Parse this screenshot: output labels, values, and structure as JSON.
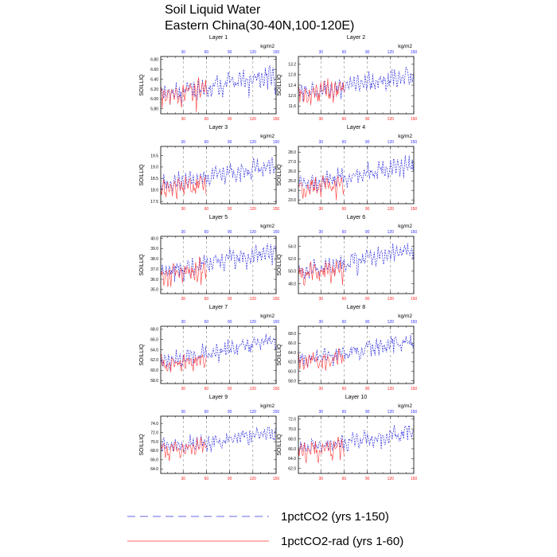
{
  "figure": {
    "title_line1": "Soil Liquid Water",
    "title_line2": "Eastern China(30-40N,100-120E)"
  },
  "legend": [
    {
      "label": "1pctCO2 (yrs 1-150)",
      "color": "#3333dd",
      "style": "dashed"
    },
    {
      "label": "1pctCO2-rad (yrs 1-60)",
      "color": "#ff3333",
      "style": "solid"
    }
  ],
  "colors": {
    "series_blue": "#2a2ae0",
    "series_red": "#ff3b3b",
    "top_ticks": "#3333ff",
    "bottom_ticks": "#ff2222",
    "grid": "#888888"
  },
  "chart_data": [
    {
      "type": "line",
      "title": "Layer 1",
      "units": "kg/m2",
      "ylabel": "SOILLIQ",
      "xlim": [
        1,
        150
      ],
      "ylim": [
        5.7,
        6.86
      ],
      "yticks": [
        "5.80",
        "6.00",
        "6.20",
        "6.40",
        "6.60",
        "6.80"
      ],
      "xticks_top": [
        "30",
        "60",
        "90",
        "120",
        "150"
      ],
      "xticks_bottom": [
        "30",
        "60",
        "90",
        "120",
        "150"
      ],
      "grid_x": [
        30,
        60,
        90,
        120
      ],
      "series": [
        {
          "id": "1pctCO2",
          "x_range": [
            1,
            150
          ],
          "y_start": 6.1,
          "y_end": 6.48,
          "amplitude": 0.22
        },
        {
          "id": "1pctCO2-rad",
          "x_range": [
            1,
            60
          ],
          "y_start": 6.05,
          "y_end": 6.2,
          "amplitude": 0.25
        }
      ]
    },
    {
      "type": "line",
      "title": "Layer 2",
      "units": "kg/m2",
      "ylabel": "SOILLIQ",
      "xlim": [
        1,
        150
      ],
      "ylim": [
        11.3,
        13.5
      ],
      "yticks": [
        "11.6",
        "12.0",
        "12.4",
        "12.8",
        "13.2"
      ],
      "xticks_top": [
        "30",
        "60",
        "90",
        "120",
        "150"
      ],
      "xticks_bottom": [
        "30",
        "60",
        "90",
        "120",
        "150"
      ],
      "grid_x": [
        30,
        60,
        90,
        120
      ],
      "series": [
        {
          "id": "1pctCO2",
          "x_range": [
            1,
            150
          ],
          "y_start": 12.1,
          "y_end": 12.8,
          "amplitude": 0.4
        },
        {
          "id": "1pctCO2-rad",
          "x_range": [
            1,
            60
          ],
          "y_start": 12.0,
          "y_end": 12.3,
          "amplitude": 0.45
        }
      ]
    },
    {
      "type": "line",
      "title": "Layer 3",
      "units": "kg/m2",
      "ylabel": "SOILLIQ",
      "xlim": [
        1,
        150
      ],
      "ylim": [
        17.4,
        19.9
      ],
      "yticks": [
        "17.5",
        "18.0",
        "18.5",
        "19.0",
        "19.5"
      ],
      "xticks_top": [
        "30",
        "60",
        "90",
        "120",
        "150"
      ],
      "xticks_bottom": [
        "30",
        "60",
        "90",
        "120",
        "150"
      ],
      "grid_x": [
        30,
        60,
        90,
        120
      ],
      "series": [
        {
          "id": "1pctCO2",
          "x_range": [
            1,
            150
          ],
          "y_start": 18.2,
          "y_end": 19.1,
          "amplitude": 0.45
        },
        {
          "id": "1pctCO2-rad",
          "x_range": [
            1,
            60
          ],
          "y_start": 18.0,
          "y_end": 18.3,
          "amplitude": 0.5
        }
      ]
    },
    {
      "type": "line",
      "title": "Layer 4",
      "units": "kg/m2",
      "ylabel": "SOILLIQ",
      "xlim": [
        1,
        150
      ],
      "ylim": [
        22.6,
        28.6
      ],
      "yticks": [
        "23.0",
        "24.0",
        "25.0",
        "26.0",
        "27.0",
        "28.0"
      ],
      "xticks_top": [
        "30",
        "60",
        "90",
        "120",
        "150"
      ],
      "xticks_bottom": [
        "30",
        "60",
        "90",
        "120",
        "150"
      ],
      "grid_x": [
        30,
        60,
        90,
        120
      ],
      "series": [
        {
          "id": "1pctCO2",
          "x_range": [
            1,
            150
          ],
          "y_start": 24.5,
          "y_end": 26.8,
          "amplitude": 1.0
        },
        {
          "id": "1pctCO2-rad",
          "x_range": [
            1,
            60
          ],
          "y_start": 24.2,
          "y_end": 24.8,
          "amplitude": 1.1
        }
      ]
    },
    {
      "type": "line",
      "title": "Layer 5",
      "units": "kg/m2",
      "ylabel": "SOILLIQ",
      "xlim": [
        1,
        150
      ],
      "ylim": [
        34.6,
        40.2
      ],
      "yticks": [
        "35.0",
        "36.0",
        "37.0",
        "38.0",
        "39.0",
        "40.0"
      ],
      "xticks_top": [
        "30",
        "60",
        "90",
        "120",
        "150"
      ],
      "xticks_bottom": [
        "30",
        "60",
        "90",
        "120",
        "150"
      ],
      "grid_x": [
        30,
        60,
        90,
        120
      ],
      "series": [
        {
          "id": "1pctCO2",
          "x_range": [
            1,
            150
          ],
          "y_start": 36.8,
          "y_end": 38.8,
          "amplitude": 1.0
        },
        {
          "id": "1pctCO2-rad",
          "x_range": [
            1,
            60
          ],
          "y_start": 36.5,
          "y_end": 37.0,
          "amplitude": 1.1
        }
      ]
    },
    {
      "type": "line",
      "title": "Layer 6",
      "units": "kg/m2",
      "ylabel": "SOILLIQ",
      "xlim": [
        1,
        150
      ],
      "ylim": [
        46.4,
        55.6
      ],
      "yticks": [
        "48.0",
        "50.0",
        "52.0",
        "54.0"
      ],
      "xticks_top": [
        "30",
        "60",
        "90",
        "120",
        "150"
      ],
      "xticks_bottom": [
        "30",
        "60",
        "90",
        "120",
        "150"
      ],
      "grid_x": [
        30,
        60,
        90,
        120
      ],
      "series": [
        {
          "id": "1pctCO2",
          "x_range": [
            1,
            150
          ],
          "y_start": 49.8,
          "y_end": 53.5,
          "amplitude": 1.5
        },
        {
          "id": "1pctCO2-rad",
          "x_range": [
            1,
            60
          ],
          "y_start": 49.5,
          "y_end": 50.3,
          "amplitude": 1.7
        }
      ]
    },
    {
      "type": "line",
      "title": "Layer 7",
      "units": "kg/m2",
      "ylabel": "SOILLIQ",
      "xlim": [
        1,
        150
      ],
      "ylim": [
        57.4,
        68.6
      ],
      "yticks": [
        "58.0",
        "60.0",
        "62.0",
        "64.0",
        "66.0",
        "68.0"
      ],
      "xticks_top": [
        "30",
        "60",
        "90",
        "120",
        "150"
      ],
      "xticks_bottom": [
        "30",
        "60",
        "90",
        "120",
        "150"
      ],
      "grid_x": [
        30,
        60,
        90,
        120
      ],
      "series": [
        {
          "id": "1pctCO2",
          "x_range": [
            1,
            150
          ],
          "y_start": 61.5,
          "y_end": 66.0,
          "amplitude": 1.8
        },
        {
          "id": "1pctCO2-rad",
          "x_range": [
            1,
            60
          ],
          "y_start": 61.0,
          "y_end": 62.0,
          "amplitude": 2.0
        }
      ]
    },
    {
      "type": "line",
      "title": "Layer 8",
      "units": "kg/m2",
      "ylabel": "SOILLIQ",
      "xlim": [
        1,
        150
      ],
      "ylim": [
        57.4,
        69.6
      ],
      "yticks": [
        "58.0",
        "60.0",
        "62.0",
        "64.0",
        "66.0",
        "68.0"
      ],
      "xticks_top": [
        "30",
        "60",
        "90",
        "120",
        "150"
      ],
      "xticks_bottom": [
        "30",
        "60",
        "90",
        "120",
        "150"
      ],
      "grid_x": [
        30,
        60,
        90,
        120
      ],
      "series": [
        {
          "id": "1pctCO2",
          "x_range": [
            1,
            150
          ],
          "y_start": 62.5,
          "y_end": 66.5,
          "amplitude": 1.8
        },
        {
          "id": "1pctCO2-rad",
          "x_range": [
            1,
            60
          ],
          "y_start": 62.0,
          "y_end": 63.0,
          "amplitude": 2.2
        }
      ]
    },
    {
      "type": "line",
      "title": "Layer 9",
      "units": "kg/m2",
      "ylabel": "SOILLIQ",
      "xlim": [
        1,
        150
      ],
      "ylim": [
        63.0,
        75.6
      ],
      "yticks": [
        "64.0",
        "66.0",
        "68.0",
        "70.0",
        "72.0",
        "74.0"
      ],
      "xticks_top": [
        "30",
        "60",
        "90",
        "120",
        "150"
      ],
      "xticks_bottom": [
        "30",
        "60",
        "90",
        "120",
        "150"
      ],
      "grid_x": [
        30,
        60,
        90,
        120
      ],
      "series": [
        {
          "id": "1pctCO2",
          "x_range": [
            1,
            150
          ],
          "y_start": 68.8,
          "y_end": 72.0,
          "amplitude": 1.7
        },
        {
          "id": "1pctCO2-rad",
          "x_range": [
            1,
            60
          ],
          "y_start": 68.2,
          "y_end": 69.2,
          "amplitude": 2.2
        }
      ]
    },
    {
      "type": "line",
      "title": "Layer 10",
      "units": "kg/m2",
      "ylabel": "SOILLIQ",
      "xlim": [
        1,
        150
      ],
      "ylim": [
        61.0,
        72.6
      ],
      "yticks": [
        "62.0",
        "64.0",
        "66.0",
        "68.0",
        "70.0",
        "72.0"
      ],
      "xticks_top": [
        "30",
        "60",
        "90",
        "120",
        "150"
      ],
      "xticks_bottom": [
        "30",
        "60",
        "90",
        "120",
        "150"
      ],
      "grid_x": [
        30,
        60,
        90,
        120
      ],
      "series": [
        {
          "id": "1pctCO2",
          "x_range": [
            1,
            150
          ],
          "y_start": 66.0,
          "y_end": 69.5,
          "amplitude": 1.7
        },
        {
          "id": "1pctCO2-rad",
          "x_range": [
            1,
            60
          ],
          "y_start": 65.5,
          "y_end": 66.5,
          "amplitude": 2.2
        }
      ]
    }
  ]
}
